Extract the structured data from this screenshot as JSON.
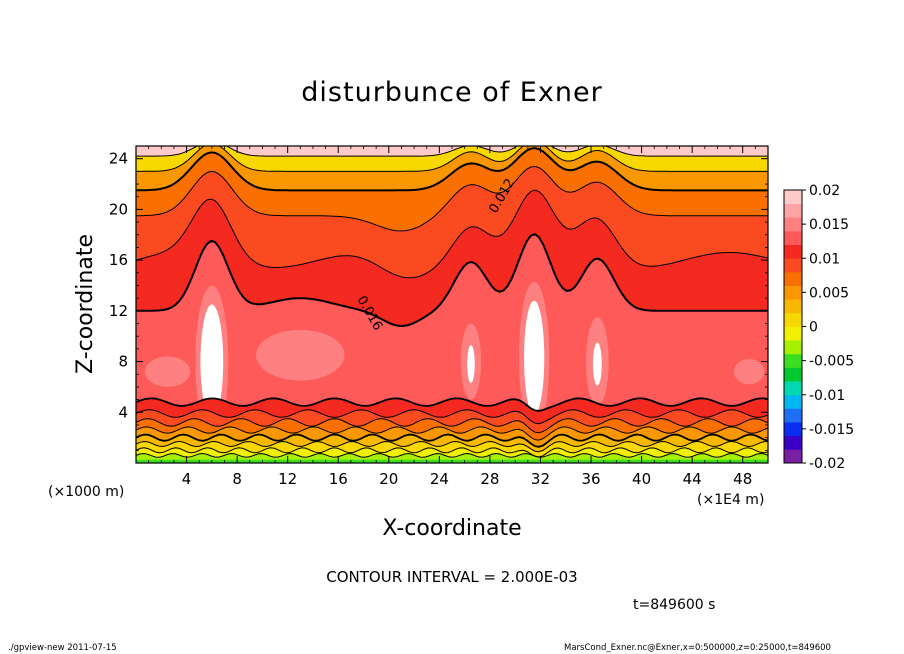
{
  "chart_data": {
    "type": "contour",
    "title": "disturbunce of Exner",
    "xlabel": "X-coordinate",
    "ylabel": "Z-coordinate",
    "x_unit_left": "(×1000 m)",
    "x_unit_right": "(×1E4 m)",
    "xlim": [
      0,
      50
    ],
    "ylim": [
      0,
      25
    ],
    "xticks": [
      4,
      8,
      12,
      16,
      20,
      24,
      28,
      32,
      36,
      40,
      44,
      48
    ],
    "yticks": [
      4,
      8,
      12,
      16,
      20,
      24
    ],
    "contour_interval_text": "CONTOUR INTERVAL = 2.000E-03",
    "time_text": "t=849600 s",
    "contour_labels": [
      "0.012",
      "0.016"
    ],
    "colorbar": {
      "min": -0.02,
      "max": 0.02,
      "tick_labels": [
        "0.02",
        "0.015",
        "0.01",
        "0.005",
        "0",
        "-0.005",
        "-0.01",
        "-0.015",
        "-0.02"
      ],
      "colors": [
        "#7a1fa2",
        "#3b00c8",
        "#0a2bf0",
        "#1f6ff5",
        "#00b8f0",
        "#00d9b0",
        "#00c830",
        "#3cde1f",
        "#a6f000",
        "#f0f000",
        "#f9d700",
        "#f9b800",
        "#f99700",
        "#f97000",
        "#f94a20",
        "#f42a20",
        "#ff5a5a",
        "#ff8080",
        "#ffa4a4",
        "#ffcaca"
      ]
    },
    "peaks_x": [
      6,
      26.5,
      31.5,
      36.5
    ]
  },
  "footer": {
    "left": "./gpview-new  2011-07-15",
    "right": "MarsCond_Exner.nc@Exner,x=0:500000,z=0:25000,t=849600"
  }
}
